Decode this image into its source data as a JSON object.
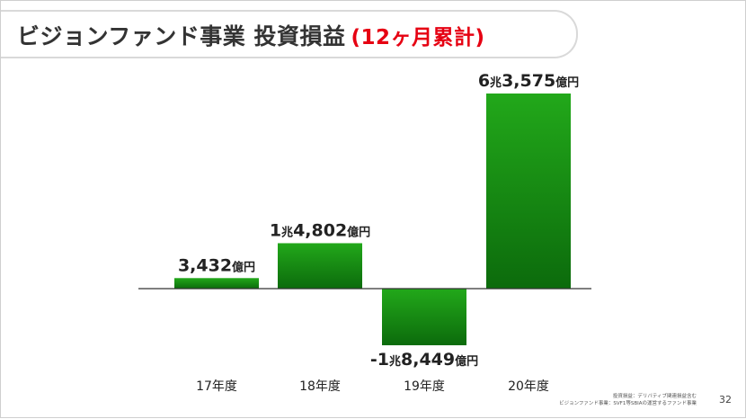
{
  "slide": {
    "title": "ビジョンファンド事業 投資損益",
    "title_highlight": "(12ヶ月累計)",
    "footnotes": [
      "投資損益：デリバティブ関連損益含む",
      "ビジョンファンド事業：SVF1等SBIAの運営するファンド事業"
    ],
    "page_number": "32"
  },
  "colors": {
    "bar_top": "#22a81a",
    "bar_bottom": "#0c6b0c",
    "baseline": "#333333",
    "accent": "#e60012",
    "title_text": "#333333"
  },
  "chart_data": {
    "type": "bar",
    "title": "ビジョンファンド事業 投資損益 (12ヶ月累計)",
    "unit": "億円",
    "categories": [
      "17年度",
      "18年度",
      "19年度",
      "20年度"
    ],
    "values": [
      3432,
      14802,
      -18449,
      63575
    ],
    "value_labels": [
      {
        "prefix": "3,432",
        "suffix": "億円"
      },
      {
        "prefix": "1",
        "mid": "兆",
        "rest": "4,802",
        "suffix": "億円"
      },
      {
        "prefix": "-1",
        "mid": "兆",
        "rest": "8,449",
        "suffix": "億円"
      },
      {
        "prefix": "6",
        "mid": "兆",
        "rest": "3,575",
        "suffix": "億円"
      }
    ],
    "grid": false,
    "legend": "none"
  }
}
